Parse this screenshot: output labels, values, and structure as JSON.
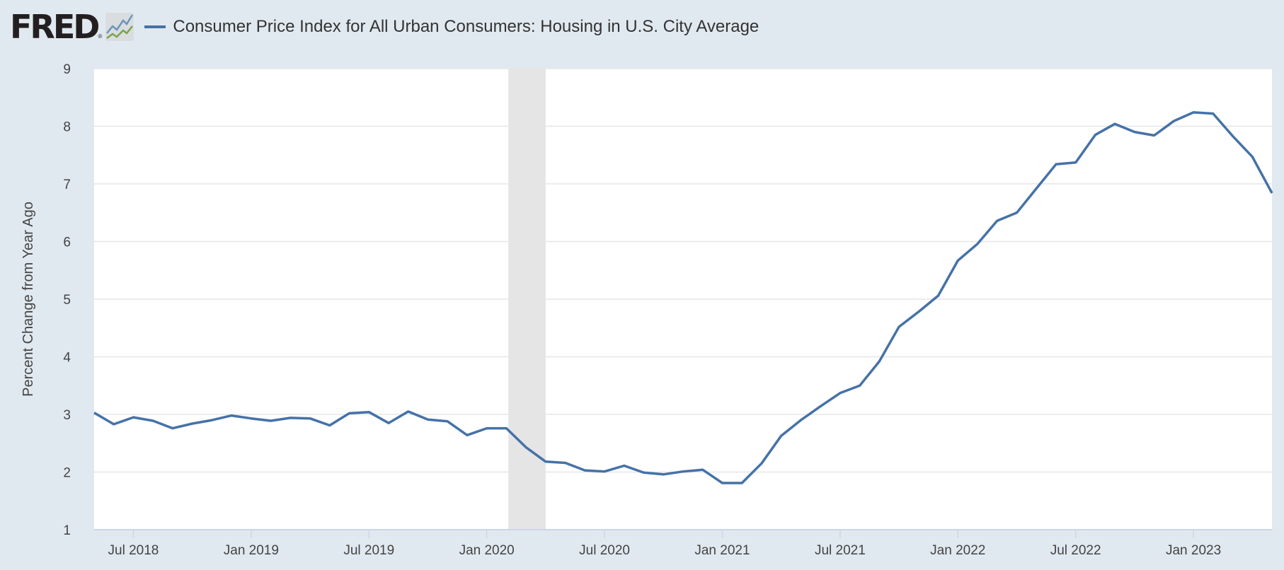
{
  "header": {
    "logo_text": "FRED",
    "logo_reg": "®",
    "legend_label": "Consumer Price Index for All Urban Consumers: Housing in U.S. City Average"
  },
  "colors": {
    "series": "#4572a7",
    "recession": "#e5e5e5",
    "grid": "#e6e6e6",
    "background": "#e1e9f0"
  },
  "chart_data": {
    "type": "line",
    "title": "Consumer Price Index for All Urban Consumers: Housing in U.S. City Average",
    "xlabel": "",
    "ylabel": "Percent Change from Year Ago",
    "ylim": [
      1,
      9
    ],
    "yticks": [
      "1",
      "2",
      "3",
      "4",
      "5",
      "6",
      "7",
      "8",
      "9"
    ],
    "grid": true,
    "legend": "top-left",
    "start_month": "2018-05",
    "x_ticks": [
      {
        "label": "Jul 2018",
        "month_index": 2
      },
      {
        "label": "Jan 2019",
        "month_index": 8
      },
      {
        "label": "Jul 2019",
        "month_index": 14
      },
      {
        "label": "Jan 2020",
        "month_index": 20
      },
      {
        "label": "Jul 2020",
        "month_index": 26
      },
      {
        "label": "Jan 2021",
        "month_index": 32
      },
      {
        "label": "Jul 2021",
        "month_index": 38
      },
      {
        "label": "Jan 2022",
        "month_index": 44
      },
      {
        "label": "Jul 2022",
        "month_index": 50
      },
      {
        "label": "Jan 2023",
        "month_index": 56
      }
    ],
    "recession": {
      "start_month_index": 21.1,
      "end_month_index": 23
    },
    "series": [
      {
        "name": "Consumer Price Index for All Urban Consumers: Housing in U.S. City Average",
        "values": [
          3.03,
          2.83,
          2.95,
          2.89,
          2.76,
          2.84,
          2.9,
          2.98,
          2.93,
          2.89,
          2.94,
          2.93,
          2.81,
          3.02,
          3.04,
          2.85,
          3.05,
          2.91,
          2.88,
          2.64,
          2.76,
          2.76,
          2.43,
          2.18,
          2.16,
          2.03,
          2.01,
          2.11,
          1.99,
          1.96,
          2.01,
          2.04,
          1.81,
          1.81,
          2.15,
          2.63,
          2.9,
          3.14,
          3.37,
          3.5,
          3.92,
          4.52,
          4.78,
          5.06,
          5.67,
          5.96,
          6.36,
          6.5,
          6.92,
          7.34,
          7.37,
          7.85,
          8.04,
          7.9,
          7.84,
          8.09,
          8.24,
          8.22,
          7.83,
          7.47,
          6.84
        ]
      }
    ]
  }
}
